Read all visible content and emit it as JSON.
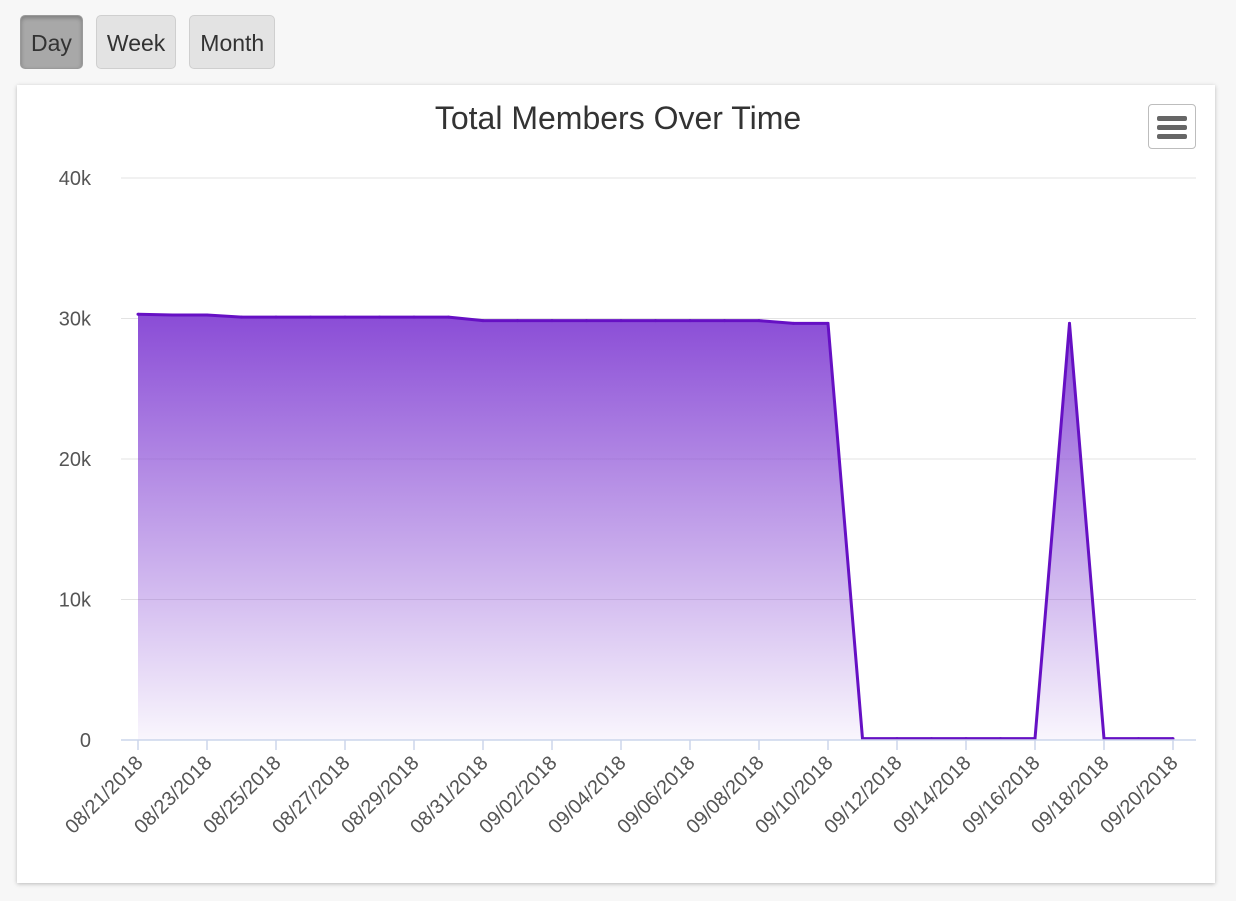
{
  "toolbar": {
    "buttons": [
      {
        "label": "Day",
        "active": true
      },
      {
        "label": "Week",
        "active": false
      },
      {
        "label": "Month",
        "active": false
      }
    ]
  },
  "menu_icon": "hamburger-menu-icon",
  "colors": {
    "line": "#6610c4",
    "fill_top": "#8a4cd6",
    "grid": "#e3e3e3",
    "axis": "#ccd6eb"
  },
  "chart_data": {
    "type": "area",
    "title": "Total Members Over Time",
    "xlabel": "",
    "ylabel": "",
    "ylim": [
      0,
      40000
    ],
    "y_ticks": [
      {
        "value": 0,
        "label": "0"
      },
      {
        "value": 10000,
        "label": "10k"
      },
      {
        "value": 20000,
        "label": "20k"
      },
      {
        "value": 30000,
        "label": "30k"
      },
      {
        "value": 40000,
        "label": "40k"
      }
    ],
    "x_tick_labels": [
      "08/21/2018",
      "08/23/2018",
      "08/25/2018",
      "08/27/2018",
      "08/29/2018",
      "08/31/2018",
      "09/02/2018",
      "09/04/2018",
      "09/06/2018",
      "09/08/2018",
      "09/10/2018",
      "09/12/2018",
      "09/14/2018",
      "09/16/2018",
      "09/18/2018",
      "09/20/2018"
    ],
    "grid": true,
    "legend": "none",
    "series": [
      {
        "x": [
          "08/21/2018",
          "08/22/2018",
          "08/23/2018",
          "08/24/2018",
          "08/25/2018",
          "08/26/2018",
          "08/27/2018",
          "08/28/2018",
          "08/29/2018",
          "08/30/2018",
          "08/31/2018",
          "09/01/2018",
          "09/02/2018",
          "09/03/2018",
          "09/04/2018",
          "09/05/2018",
          "09/06/2018",
          "09/07/2018",
          "09/08/2018",
          "09/09/2018",
          "09/10/2018",
          "09/11/2018",
          "09/12/2018",
          "09/13/2018",
          "09/14/2018",
          "09/15/2018",
          "09/16/2018",
          "09/17/2018",
          "09/18/2018",
          "09/19/2018",
          "09/20/2018"
        ],
        "values": [
          30300,
          30250,
          30250,
          30100,
          30100,
          30100,
          30100,
          30100,
          30100,
          30100,
          29850,
          29850,
          29850,
          29850,
          29850,
          29850,
          29850,
          29850,
          29850,
          29650,
          29650,
          100,
          100,
          100,
          100,
          100,
          100,
          29650,
          100,
          100,
          100
        ]
      }
    ]
  }
}
